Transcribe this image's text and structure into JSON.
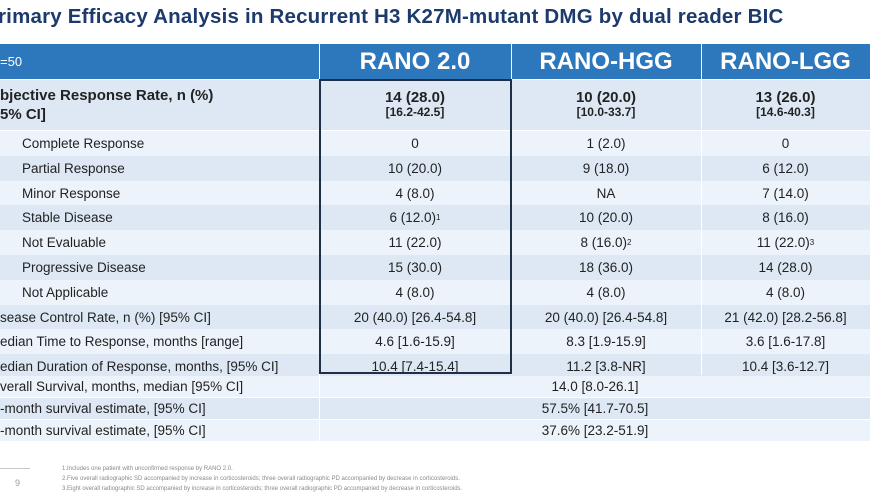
{
  "title": "rimary Efficacy Analysis in Recurrent H3 K27M-mutant DMG by dual reader BIC",
  "header": {
    "n_label": "=50",
    "col1": "RANO 2.0",
    "col2": "RANO-HGG",
    "col3": "RANO-LGG"
  },
  "orr": {
    "label_line1": "bjective Response Rate, n (%)",
    "label_line2": "5% CI]",
    "col1_main": "14 (28.0)",
    "col1_ci": "[16.2-42.5]",
    "col2_main": "10 (20.0)",
    "col2_ci": "[10.0-33.7]",
    "col3_main": "13 (26.0)",
    "col3_ci": "[14.6-40.3]"
  },
  "rows": [
    {
      "label": "Complete Response",
      "c1": "0",
      "c1_sup": "",
      "c2": "1 (2.0)",
      "c2_sup": "",
      "c3": "0",
      "c3_sup": ""
    },
    {
      "label": "Partial Response",
      "c1": "10 (20.0)",
      "c1_sup": "",
      "c2": "9 (18.0)",
      "c2_sup": "",
      "c3": "6 (12.0)",
      "c3_sup": ""
    },
    {
      "label": "Minor Response",
      "c1": "4 (8.0)",
      "c1_sup": "",
      "c2": "NA",
      "c2_sup": "",
      "c3": "7 (14.0)",
      "c3_sup": ""
    },
    {
      "label": "Stable Disease",
      "c1": "6 (12.0)",
      "c1_sup": "1",
      "c2": "10 (20.0)",
      "c2_sup": "",
      "c3": "8 (16.0)",
      "c3_sup": ""
    },
    {
      "label": "Not Evaluable",
      "c1": "11 (22.0)",
      "c1_sup": "",
      "c2": "8 (16.0)",
      "c2_sup": "2",
      "c3": "11 (22.0)",
      "c3_sup": "3"
    },
    {
      "label": "Progressive Disease",
      "c1": "15 (30.0)",
      "c1_sup": "",
      "c2": "18 (36.0)",
      "c2_sup": "",
      "c3": "14 (28.0)",
      "c3_sup": ""
    },
    {
      "label": "Not Applicable",
      "c1": "4 (8.0)",
      "c1_sup": "",
      "c2": "4 (8.0)",
      "c2_sup": "",
      "c3": "4 (8.0)",
      "c3_sup": ""
    },
    {
      "label": "sease Control Rate, n (%) [95% CI]",
      "c1": "20 (40.0) [26.4-54.8]",
      "c1_sup": "",
      "c2": "20 (40.0) [26.4-54.8]",
      "c2_sup": "",
      "c3": "21 (42.0) [28.2-56.8]",
      "c3_sup": ""
    },
    {
      "label": "edian Time to Response, months [range]",
      "c1": "4.6 [1.6-15.9]",
      "c1_sup": "",
      "c2": "8.3 [1.9-15.9]",
      "c2_sup": "",
      "c3": "3.6 [1.6-17.8]",
      "c3_sup": ""
    },
    {
      "label": "edian Duration of Response, months, [95% CI]",
      "c1": "10.4 [7.4-15.4]",
      "c1_sup": "",
      "c2": "11.2 [3.8-NR]",
      "c2_sup": "",
      "c3": "10.4 [3.6-12.7]",
      "c3_sup": ""
    }
  ],
  "merged_rows": [
    {
      "label": "verall Survival, months, median [95% CI]",
      "value": "14.0 [8.0-26.1]"
    },
    {
      "label": "-month survival estimate, [95% CI]",
      "value": "57.5% [41.7-70.5]"
    },
    {
      "label": "-month survival estimate, [95% CI]",
      "value": "37.6% [23.2-51.9]"
    }
  ],
  "footer": {
    "page_number": "9",
    "notes": [
      "1.Includes one patient with unconfirmed response by RANO 2.0.",
      "2.Five overall radiographic SD accompanied by increase in corticosteroids; three overall radiographic PD accompanied by decrease in corticosteroids.",
      "3.Eight overall radiographic SD accompanied by increase in corticosteroids; three overall radiographic PD accompanied by decrease in corticosteroids."
    ]
  },
  "colors": {
    "header_blue": "#2d77bd",
    "band_dark": "#dde8f4",
    "band_light": "#edf3fa",
    "title_color": "#1c3a6b"
  }
}
